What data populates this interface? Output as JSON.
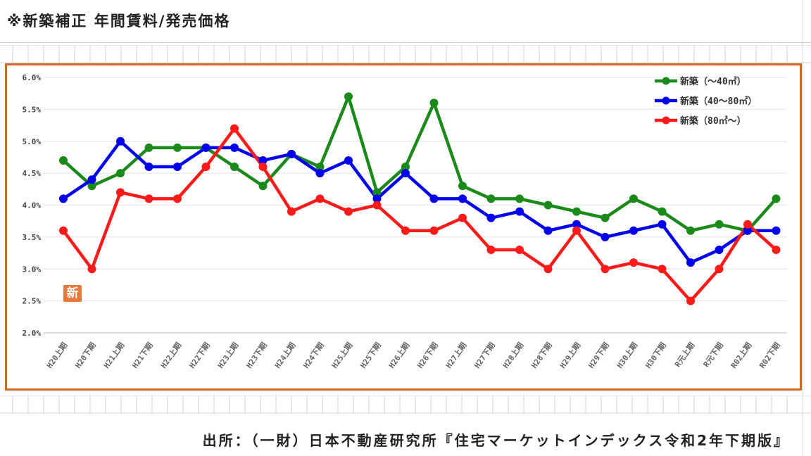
{
  "header": {
    "title": "※新築補正 年間賃料/発売価格"
  },
  "source": {
    "caption": "出所：（一財）日本不動産研究所『住宅マーケットインデックス令和2年下期版』"
  },
  "badge": {
    "text": "新"
  },
  "colors": {
    "frame": "#d2691e",
    "badge": "#e8793a"
  },
  "chart_data": {
    "type": "line",
    "categories": [
      "H20上期",
      "H20下期",
      "H21上期",
      "H21下期",
      "H22上期",
      "H22下期",
      "H23上期",
      "H23下期",
      "H24上期",
      "H24下期",
      "H25上期",
      "H25下期",
      "H26上期",
      "H26下期",
      "H27上期",
      "H27下期",
      "H28上期",
      "H28下期",
      "H29上期",
      "H29下期",
      "H30上期",
      "H30下期",
      "R元上期",
      "R元下期",
      "R02上期",
      "R02下期"
    ],
    "ylim": [
      2.0,
      6.0
    ],
    "yticks": [
      "2.0%",
      "2.5%",
      "3.0%",
      "3.5%",
      "4.0%",
      "4.5%",
      "5.0%",
      "5.5%",
      "6.0%"
    ],
    "ytick_values": [
      2.0,
      2.5,
      3.0,
      3.5,
      4.0,
      4.5,
      5.0,
      5.5,
      6.0
    ],
    "grid": "horizontal",
    "legend_position": "top-right",
    "series": [
      {
        "name": "新築（～40㎡）",
        "color": "#1a8a1a",
        "values": [
          4.7,
          4.3,
          4.5,
          4.9,
          4.9,
          4.9,
          4.6,
          4.3,
          4.8,
          4.6,
          5.7,
          4.2,
          4.6,
          5.6,
          4.3,
          4.1,
          4.1,
          4.0,
          3.9,
          3.8,
          4.1,
          3.9,
          3.6,
          3.7,
          3.6,
          4.1
        ]
      },
      {
        "name": "新築（40～80㎡）",
        "color": "#0000ee",
        "values": [
          4.1,
          4.4,
          5.0,
          4.6,
          4.6,
          4.9,
          4.9,
          4.7,
          4.8,
          4.5,
          4.7,
          4.1,
          4.5,
          4.1,
          4.1,
          3.8,
          3.9,
          3.6,
          3.7,
          3.5,
          3.6,
          3.7,
          3.1,
          3.3,
          3.6,
          3.6
        ]
      },
      {
        "name": "新築（80㎡～）",
        "color": "#ff1a1a",
        "values": [
          3.6,
          3.0,
          4.2,
          4.1,
          4.1,
          4.6,
          5.2,
          4.6,
          3.9,
          4.1,
          3.9,
          4.0,
          3.6,
          3.6,
          3.8,
          3.3,
          3.3,
          3.0,
          3.6,
          3.0,
          3.1,
          3.0,
          2.5,
          3.0,
          3.7,
          3.3
        ]
      }
    ]
  }
}
